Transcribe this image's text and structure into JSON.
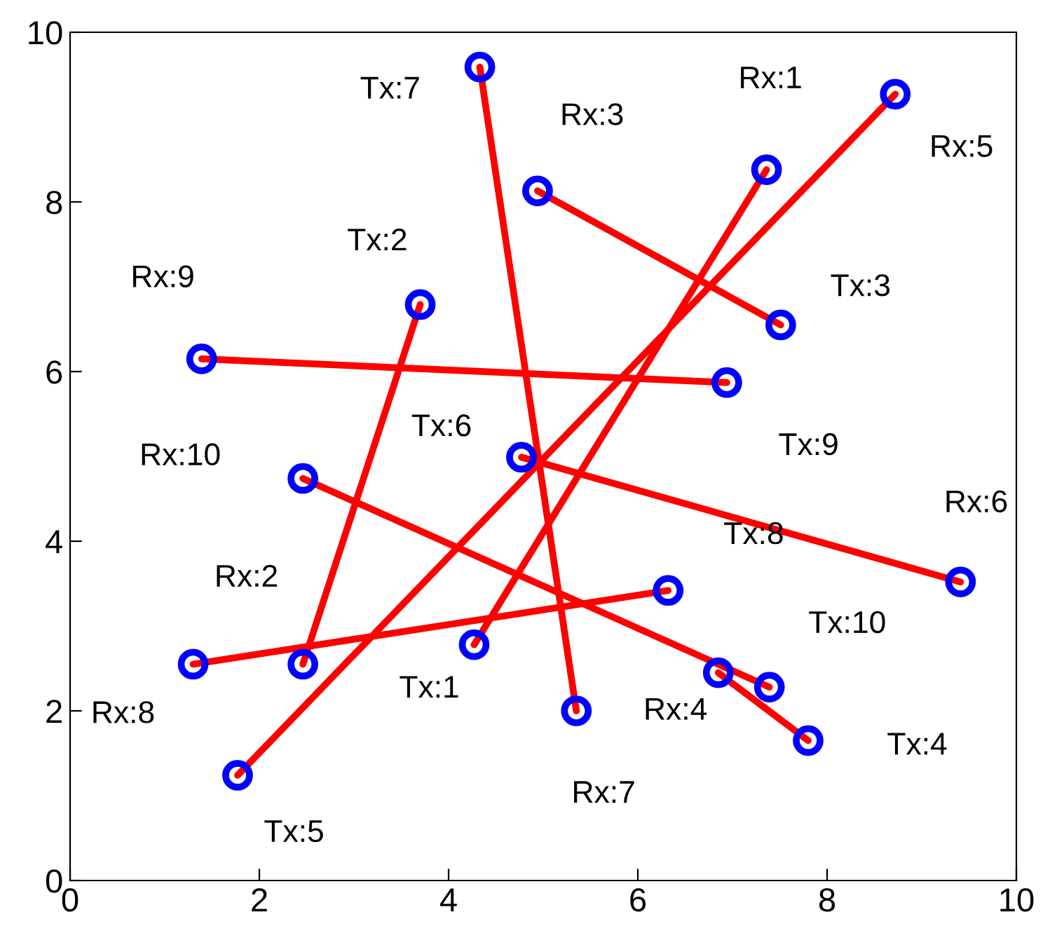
{
  "chart_data": {
    "type": "scatter",
    "xlim": [
      0,
      10
    ],
    "ylim": [
      0,
      10
    ],
    "xticks": [
      0,
      2,
      4,
      6,
      8,
      10
    ],
    "yticks": [
      0,
      2,
      4,
      6,
      8,
      10
    ],
    "grid": false,
    "legend": false,
    "series": [
      {
        "type": "line",
        "color": "#ff0000",
        "x": [
          4.27,
          7.36
        ],
        "values": [
          2.78,
          8.38
        ]
      },
      {
        "type": "line",
        "color": "#ff0000",
        "x": [
          3.7,
          2.46
        ],
        "values": [
          6.79,
          2.55
        ]
      },
      {
        "type": "line",
        "color": "#ff0000",
        "x": [
          7.51,
          4.94
        ],
        "values": [
          6.55,
          8.13
        ]
      },
      {
        "type": "line",
        "color": "#ff0000",
        "x": [
          7.8,
          6.85
        ],
        "values": [
          1.65,
          2.45
        ]
      },
      {
        "type": "line",
        "color": "#ff0000",
        "x": [
          1.77,
          8.72
        ],
        "values": [
          1.24,
          9.27
        ]
      },
      {
        "type": "line",
        "color": "#ff0000",
        "x": [
          4.77,
          9.41
        ],
        "values": [
          4.99,
          3.52
        ]
      },
      {
        "type": "line",
        "color": "#ff0000",
        "x": [
          4.33,
          5.35
        ],
        "values": [
          9.59,
          2.0
        ]
      },
      {
        "type": "line",
        "color": "#ff0000",
        "x": [
          6.32,
          1.3
        ],
        "values": [
          3.42,
          2.55
        ]
      },
      {
        "type": "line",
        "color": "#ff0000",
        "x": [
          6.94,
          1.39
        ],
        "values": [
          5.87,
          6.15
        ]
      },
      {
        "type": "line",
        "color": "#ff0000",
        "x": [
          7.39,
          2.46
        ],
        "values": [
          2.28,
          4.74
        ]
      },
      {
        "color": "#0000ff",
        "marker": "circle",
        "x": [
          4.27,
          3.7,
          7.51,
          7.8,
          1.77,
          4.77,
          4.33,
          6.32,
          6.94,
          7.39
        ],
        "values": [
          2.78,
          6.79,
          6.55,
          1.65,
          1.24,
          4.99,
          9.59,
          3.42,
          5.87,
          2.28
        ]
      },
      {
        "color": "#0000ff",
        "marker": "circle",
        "x": [
          7.36,
          2.46,
          4.94,
          6.85,
          8.72,
          9.41,
          5.35,
          1.3,
          1.39,
          2.46
        ],
        "values": [
          8.38,
          2.55,
          8.13,
          2.45,
          9.27,
          3.52,
          2.0,
          2.55,
          6.15,
          4.74
        ]
      }
    ],
    "annotations": [
      {
        "text": "Tx:1",
        "x": 4.27,
        "y": 2.78
      },
      {
        "text": "Tx:2",
        "x": 3.7,
        "y": 6.79
      },
      {
        "text": "Tx:3",
        "x": 7.51,
        "y": 6.55
      },
      {
        "text": "Tx:4",
        "x": 7.8,
        "y": 1.65
      },
      {
        "text": "Tx:5",
        "x": 1.77,
        "y": 1.24
      },
      {
        "text": "Tx:6",
        "x": 4.77,
        "y": 4.99
      },
      {
        "text": "Tx:7",
        "x": 4.33,
        "y": 9.59
      },
      {
        "text": "Tx:8",
        "x": 6.32,
        "y": 3.42
      },
      {
        "text": "Tx:9",
        "x": 6.94,
        "y": 5.87
      },
      {
        "text": "Tx:10",
        "x": 7.39,
        "y": 2.28
      },
      {
        "text": "Rx:1",
        "x": 7.36,
        "y": 8.38
      },
      {
        "text": "Rx:2",
        "x": 2.46,
        "y": 2.55
      },
      {
        "text": "Rx:3",
        "x": 4.94,
        "y": 8.13
      },
      {
        "text": "Rx:4",
        "x": 6.85,
        "y": 2.45
      },
      {
        "text": "Rx:5",
        "x": 8.72,
        "y": 9.27
      },
      {
        "text": "Rx:6",
        "x": 9.41,
        "y": 3.52
      },
      {
        "text": "Rx:7",
        "x": 5.35,
        "y": 2.0
      },
      {
        "text": "Rx:8",
        "x": 1.3,
        "y": 2.55
      },
      {
        "text": "Rx:9",
        "x": 1.39,
        "y": 6.15
      },
      {
        "text": "Rx:10",
        "x": 2.46,
        "y": 4.74
      }
    ]
  }
}
